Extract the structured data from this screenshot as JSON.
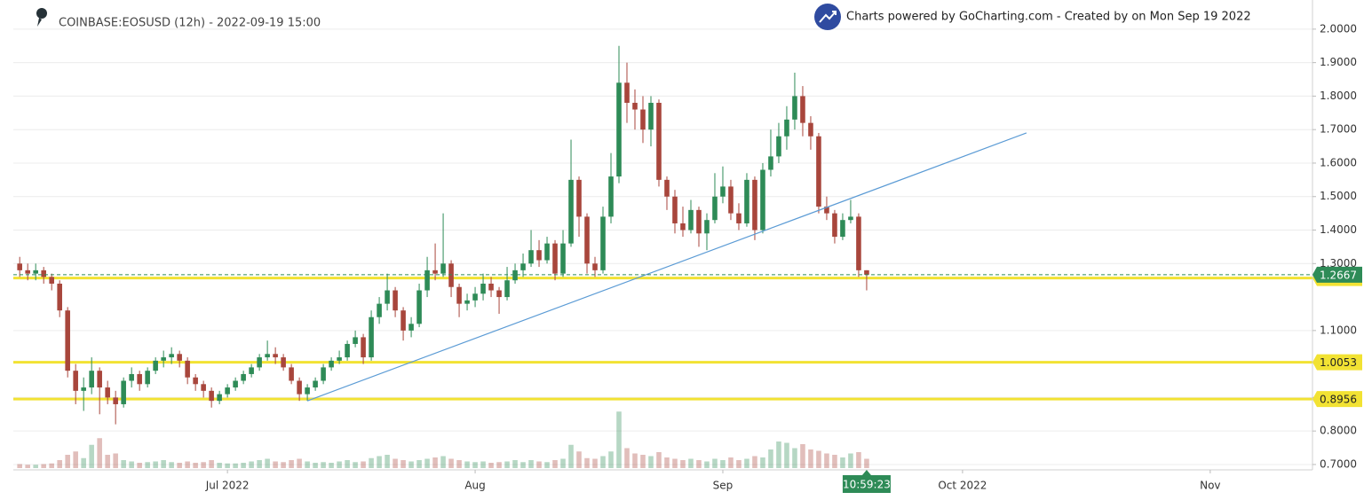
{
  "chart_data": {
    "type": "candlestick",
    "title": "COINBASE:EOSUSD (12h) - 2022-09-19 15:00",
    "credit": "Charts powered by GoCharting.com - Created by  on Mon Sep 19 2022",
    "countdown": "10:59:23",
    "up_color": "#2e8b57",
    "down_color": "#a8463c",
    "level_color": "#f2e233",
    "trend_color": "#5b9bd5",
    "grid": true,
    "xlim": [
      -0.8,
      161.8
    ],
    "ylim": [
      0.684,
      2.087
    ],
    "vlim": [
      0,
      100
    ],
    "xticks": [
      {
        "value": 26,
        "label": "Jul 2022"
      },
      {
        "value": 57,
        "label": "Aug"
      },
      {
        "value": 88,
        "label": "Sep"
      },
      {
        "value": 118,
        "label": "Oct 2022"
      },
      {
        "value": 149,
        "label": "Nov"
      }
    ],
    "yticks": [
      {
        "value": 2.0,
        "label": "2.0000"
      },
      {
        "value": 1.9,
        "label": "1.9000"
      },
      {
        "value": 1.8,
        "label": "1.8000"
      },
      {
        "value": 1.7,
        "label": "1.7000"
      },
      {
        "value": 1.6,
        "label": "1.6000"
      },
      {
        "value": 1.5,
        "label": "1.5000"
      },
      {
        "value": 1.4,
        "label": "1.4000"
      },
      {
        "value": 1.3,
        "label": "1.3000"
      },
      {
        "value": 1.1,
        "label": "1.1000"
      },
      {
        "value": 0.9,
        "label": "0.9000"
      },
      {
        "value": 0.8,
        "label": "0.8000"
      },
      {
        "value": 0.7,
        "label": "0.7000"
      }
    ],
    "levels": [
      1.2569,
      1.0053,
      0.8956
    ],
    "current_price": 1.2667,
    "trend_line": {
      "x": [
        36,
        126
      ],
      "y": [
        0.89,
        1.69
      ]
    },
    "ohlc": [
      [
        1.3,
        1.32,
        1.26,
        1.28
      ],
      [
        1.28,
        1.3,
        1.25,
        1.27
      ],
      [
        1.27,
        1.3,
        1.25,
        1.28
      ],
      [
        1.28,
        1.29,
        1.24,
        1.26
      ],
      [
        1.26,
        1.27,
        1.22,
        1.24
      ],
      [
        1.24,
        1.25,
        1.14,
        1.16
      ],
      [
        1.16,
        1.17,
        0.96,
        0.98
      ],
      [
        0.98,
        1.0,
        0.88,
        0.92
      ],
      [
        0.92,
        0.96,
        0.86,
        0.93
      ],
      [
        0.93,
        1.02,
        0.91,
        0.98
      ],
      [
        0.98,
        0.99,
        0.85,
        0.93
      ],
      [
        0.93,
        0.95,
        0.88,
        0.9
      ],
      [
        0.9,
        0.92,
        0.82,
        0.88
      ],
      [
        0.88,
        0.96,
        0.87,
        0.95
      ],
      [
        0.95,
        0.99,
        0.93,
        0.97
      ],
      [
        0.97,
        0.98,
        0.92,
        0.94
      ],
      [
        0.94,
        0.99,
        0.93,
        0.98
      ],
      [
        0.98,
        1.02,
        0.97,
        1.01
      ],
      [
        1.01,
        1.04,
        0.99,
        1.02
      ],
      [
        1.02,
        1.05,
        1.0,
        1.03
      ],
      [
        1.03,
        1.04,
        0.99,
        1.01
      ],
      [
        1.01,
        1.02,
        0.94,
        0.96
      ],
      [
        0.96,
        0.97,
        0.92,
        0.94
      ],
      [
        0.94,
        0.95,
        0.9,
        0.92
      ],
      [
        0.92,
        0.93,
        0.87,
        0.89
      ],
      [
        0.89,
        0.92,
        0.88,
        0.91
      ],
      [
        0.91,
        0.94,
        0.9,
        0.93
      ],
      [
        0.93,
        0.96,
        0.92,
        0.95
      ],
      [
        0.95,
        0.98,
        0.94,
        0.97
      ],
      [
        0.97,
        1.0,
        0.96,
        0.99
      ],
      [
        0.99,
        1.03,
        0.98,
        1.02
      ],
      [
        1.02,
        1.07,
        1.01,
        1.03
      ],
      [
        1.03,
        1.05,
        1.0,
        1.02
      ],
      [
        1.02,
        1.03,
        0.98,
        0.99
      ],
      [
        0.99,
        1.0,
        0.94,
        0.95
      ],
      [
        0.95,
        0.96,
        0.89,
        0.91
      ],
      [
        0.91,
        0.94,
        0.89,
        0.93
      ],
      [
        0.93,
        0.96,
        0.92,
        0.95
      ],
      [
        0.95,
        1.0,
        0.94,
        0.99
      ],
      [
        0.99,
        1.02,
        0.98,
        1.01
      ],
      [
        1.01,
        1.04,
        1.0,
        1.02
      ],
      [
        1.02,
        1.07,
        1.01,
        1.06
      ],
      [
        1.06,
        1.1,
        1.05,
        1.08
      ],
      [
        1.08,
        1.09,
        1.0,
        1.02
      ],
      [
        1.02,
        1.16,
        1.01,
        1.14
      ],
      [
        1.14,
        1.2,
        1.12,
        1.18
      ],
      [
        1.18,
        1.27,
        1.16,
        1.22
      ],
      [
        1.22,
        1.23,
        1.14,
        1.16
      ],
      [
        1.16,
        1.17,
        1.07,
        1.1
      ],
      [
        1.1,
        1.14,
        1.08,
        1.12
      ],
      [
        1.12,
        1.24,
        1.11,
        1.22
      ],
      [
        1.22,
        1.32,
        1.2,
        1.28
      ],
      [
        1.28,
        1.36,
        1.25,
        1.27
      ],
      [
        1.27,
        1.45,
        1.26,
        1.3
      ],
      [
        1.3,
        1.31,
        1.2,
        1.23
      ],
      [
        1.23,
        1.24,
        1.14,
        1.18
      ],
      [
        1.18,
        1.21,
        1.16,
        1.19
      ],
      [
        1.19,
        1.23,
        1.17,
        1.21
      ],
      [
        1.21,
        1.27,
        1.19,
        1.24
      ],
      [
        1.24,
        1.26,
        1.2,
        1.22
      ],
      [
        1.22,
        1.23,
        1.15,
        1.2
      ],
      [
        1.2,
        1.29,
        1.19,
        1.25
      ],
      [
        1.25,
        1.3,
        1.24,
        1.28
      ],
      [
        1.28,
        1.33,
        1.26,
        1.3
      ],
      [
        1.3,
        1.4,
        1.29,
        1.34
      ],
      [
        1.34,
        1.37,
        1.29,
        1.31
      ],
      [
        1.31,
        1.38,
        1.3,
        1.36
      ],
      [
        1.36,
        1.37,
        1.25,
        1.27
      ],
      [
        1.27,
        1.4,
        1.26,
        1.36
      ],
      [
        1.36,
        1.67,
        1.35,
        1.55
      ],
      [
        1.55,
        1.56,
        1.38,
        1.44
      ],
      [
        1.44,
        1.45,
        1.27,
        1.3
      ],
      [
        1.3,
        1.32,
        1.26,
        1.28
      ],
      [
        1.28,
        1.47,
        1.27,
        1.44
      ],
      [
        1.44,
        1.63,
        1.42,
        1.56
      ],
      [
        1.56,
        1.95,
        1.54,
        1.84
      ],
      [
        1.84,
        1.9,
        1.72,
        1.78
      ],
      [
        1.78,
        1.82,
        1.7,
        1.76
      ],
      [
        1.76,
        1.8,
        1.66,
        1.7
      ],
      [
        1.7,
        1.8,
        1.65,
        1.78
      ],
      [
        1.78,
        1.79,
        1.53,
        1.55
      ],
      [
        1.55,
        1.56,
        1.46,
        1.5
      ],
      [
        1.5,
        1.52,
        1.39,
        1.42
      ],
      [
        1.42,
        1.47,
        1.38,
        1.4
      ],
      [
        1.4,
        1.49,
        1.39,
        1.46
      ],
      [
        1.46,
        1.47,
        1.35,
        1.39
      ],
      [
        1.39,
        1.45,
        1.34,
        1.43
      ],
      [
        1.43,
        1.57,
        1.42,
        1.5
      ],
      [
        1.5,
        1.59,
        1.48,
        1.53
      ],
      [
        1.53,
        1.55,
        1.43,
        1.45
      ],
      [
        1.45,
        1.48,
        1.4,
        1.42
      ],
      [
        1.42,
        1.57,
        1.41,
        1.55
      ],
      [
        1.55,
        1.56,
        1.37,
        1.4
      ],
      [
        1.4,
        1.6,
        1.39,
        1.58
      ],
      [
        1.58,
        1.7,
        1.56,
        1.62
      ],
      [
        1.62,
        1.72,
        1.6,
        1.68
      ],
      [
        1.68,
        1.77,
        1.64,
        1.73
      ],
      [
        1.73,
        1.87,
        1.7,
        1.8
      ],
      [
        1.8,
        1.83,
        1.68,
        1.72
      ],
      [
        1.72,
        1.74,
        1.64,
        1.68
      ],
      [
        1.68,
        1.69,
        1.45,
        1.47
      ],
      [
        1.47,
        1.5,
        1.43,
        1.45
      ],
      [
        1.45,
        1.46,
        1.36,
        1.38
      ],
      [
        1.38,
        1.45,
        1.37,
        1.43
      ],
      [
        1.43,
        1.49,
        1.42,
        1.44
      ],
      [
        1.44,
        1.45,
        1.26,
        1.28
      ],
      [
        1.28,
        1.28,
        1.22,
        1.2667
      ]
    ],
    "volume": [
      6,
      5,
      5,
      6,
      7,
      12,
      20,
      25,
      15,
      35,
      45,
      20,
      22,
      12,
      10,
      8,
      9,
      10,
      12,
      9,
      8,
      10,
      8,
      9,
      12,
      8,
      7,
      7,
      8,
      10,
      12,
      14,
      10,
      9,
      12,
      14,
      10,
      8,
      9,
      8,
      10,
      12,
      9,
      10,
      15,
      18,
      20,
      14,
      12,
      10,
      12,
      14,
      16,
      18,
      14,
      12,
      10,
      9,
      10,
      8,
      9,
      10,
      12,
      9,
      12,
      10,
      9,
      12,
      14,
      35,
      25,
      15,
      14,
      18,
      25,
      85,
      30,
      22,
      20,
      18,
      24,
      16,
      14,
      12,
      14,
      12,
      10,
      14,
      12,
      16,
      12,
      14,
      18,
      16,
      28,
      40,
      38,
      30,
      36,
      28,
      26,
      22,
      20,
      16,
      22,
      24,
      14
    ]
  }
}
